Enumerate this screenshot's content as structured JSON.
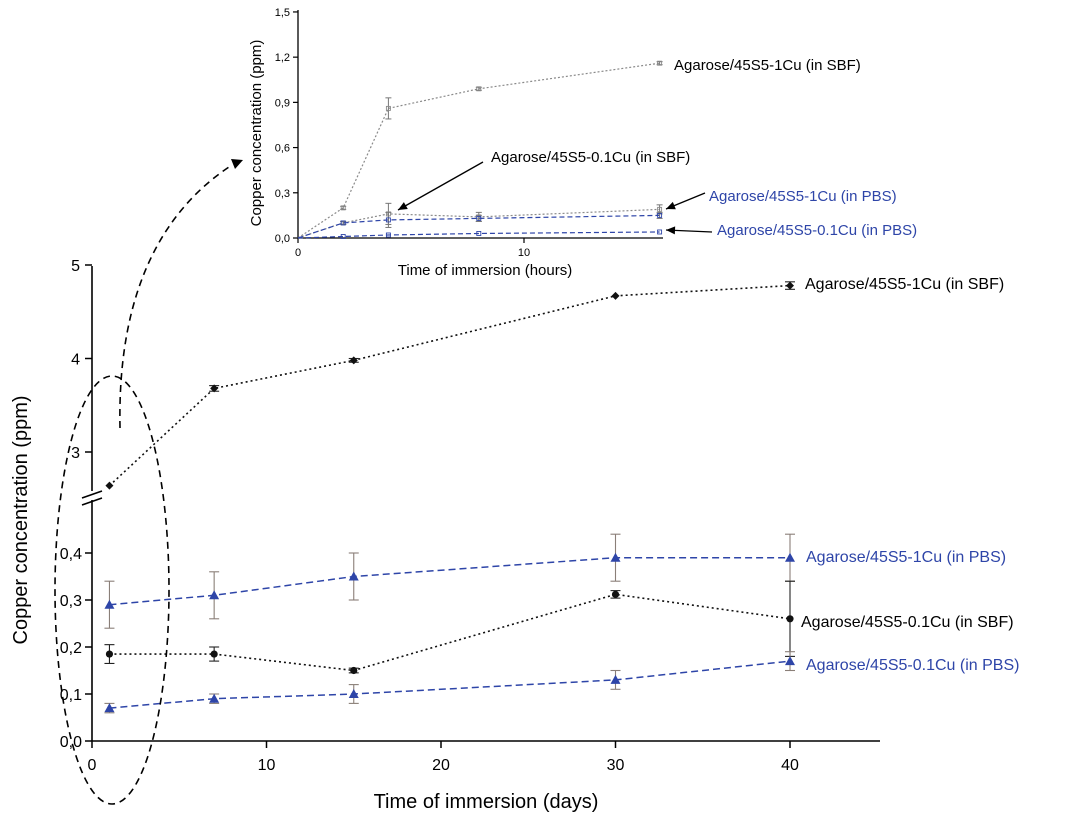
{
  "colors": {
    "sbf": "#111111",
    "pbs": "#2e45a8",
    "err_pbs": "#8a7f78",
    "inset_line": "#8a8a8a"
  },
  "chart_data": [
    {
      "type": "line",
      "xlabel": "Time of immersion (days)",
      "ylabel": "Copper concentration (ppm)",
      "xlim": [
        0,
        45
      ],
      "xticks": [
        "0",
        "10",
        "20",
        "30",
        "40"
      ],
      "y_axis_break": true,
      "ylim_lower": [
        0,
        0.45
      ],
      "ylim_upper": [
        2.6,
        5.0
      ],
      "yticks_lower": [
        "0,0",
        "0,1",
        "0,2",
        "0,3",
        "0,4"
      ],
      "yticks_upper": [
        "3",
        "4",
        "5"
      ],
      "grid": false,
      "series": [
        {
          "name": "Agarose/45S5-1Cu (in SBF)",
          "marker": "diamond",
          "color": "#111111",
          "x": [
            1,
            7,
            15,
            30,
            40
          ],
          "y": [
            2.64,
            3.68,
            3.98,
            4.67,
            4.78
          ],
          "err": [
            0.01,
            0.03,
            0.02,
            0.01,
            0.04
          ]
        },
        {
          "name": "Agarose/45S5-1Cu (in PBS)",
          "marker": "triangle",
          "color": "#2e45a8",
          "x": [
            1,
            7,
            15,
            30,
            40
          ],
          "y": [
            0.29,
            0.31,
            0.35,
            0.39,
            0.39
          ],
          "err": [
            0.05,
            0.05,
            0.05,
            0.05,
            0.05
          ]
        },
        {
          "name": "Agarose/45S5-0.1Cu (in SBF)",
          "marker": "circle",
          "color": "#111111",
          "x": [
            1,
            7,
            15,
            30,
            40
          ],
          "y": [
            0.185,
            0.185,
            0.15,
            0.312,
            0.26
          ],
          "err": [
            0.02,
            0.015,
            0.005,
            0.008,
            0.08
          ]
        },
        {
          "name": "Agarose/45S5-0.1Cu (in PBS)",
          "marker": "triangle",
          "color": "#2e45a8",
          "x": [
            1,
            7,
            15,
            30,
            40
          ],
          "y": [
            0.07,
            0.09,
            0.1,
            0.13,
            0.17
          ],
          "err": [
            0.01,
            0.01,
            0.02,
            0.02,
            0.02
          ]
        }
      ]
    },
    {
      "type": "line",
      "xlabel": "Time of immersion (hours)",
      "ylabel": "Copper concentration (ppm)",
      "xlim": [
        0,
        16
      ],
      "ylim": [
        0,
        1.5
      ],
      "xticks": [
        "0",
        "10"
      ],
      "yticks": [
        "0,0",
        "0,3",
        "0,6",
        "0,9",
        "1,2",
        "1,5"
      ],
      "grid": false,
      "series": [
        {
          "name": "Agarose/45S5-1Cu (in SBF)",
          "color": "#8a8a8a",
          "x": [
            0,
            2,
            4,
            8,
            16
          ],
          "y": [
            0,
            0.2,
            0.86,
            0.99,
            1.16
          ],
          "err": [
            0,
            0.01,
            0.07,
            0.01,
            0.01
          ]
        },
        {
          "name": "Agarose/45S5-0.1Cu (in SBF)",
          "color": "#8a8a8a",
          "x": [
            0,
            2,
            4,
            8,
            16
          ],
          "y": [
            0,
            0.1,
            0.16,
            0.14,
            0.19
          ],
          "err": [
            0,
            0.01,
            0.07,
            0.03,
            0.03
          ]
        },
        {
          "name": "Agarose/45S5-1Cu (in PBS)",
          "color": "#2e45a8",
          "x": [
            0,
            2,
            4,
            8,
            16
          ],
          "y": [
            0,
            0.1,
            0.12,
            0.13,
            0.15
          ],
          "err": [
            0,
            0.01,
            0.05,
            0.02,
            0.02
          ]
        },
        {
          "name": "Agarose/45S5-0.1Cu (in PBS)",
          "color": "#2e45a8",
          "x": [
            0,
            2,
            4,
            8,
            16
          ],
          "y": [
            0,
            0.01,
            0.02,
            0.03,
            0.04
          ],
          "err": [
            0,
            0,
            0,
            0,
            0
          ]
        }
      ]
    }
  ]
}
